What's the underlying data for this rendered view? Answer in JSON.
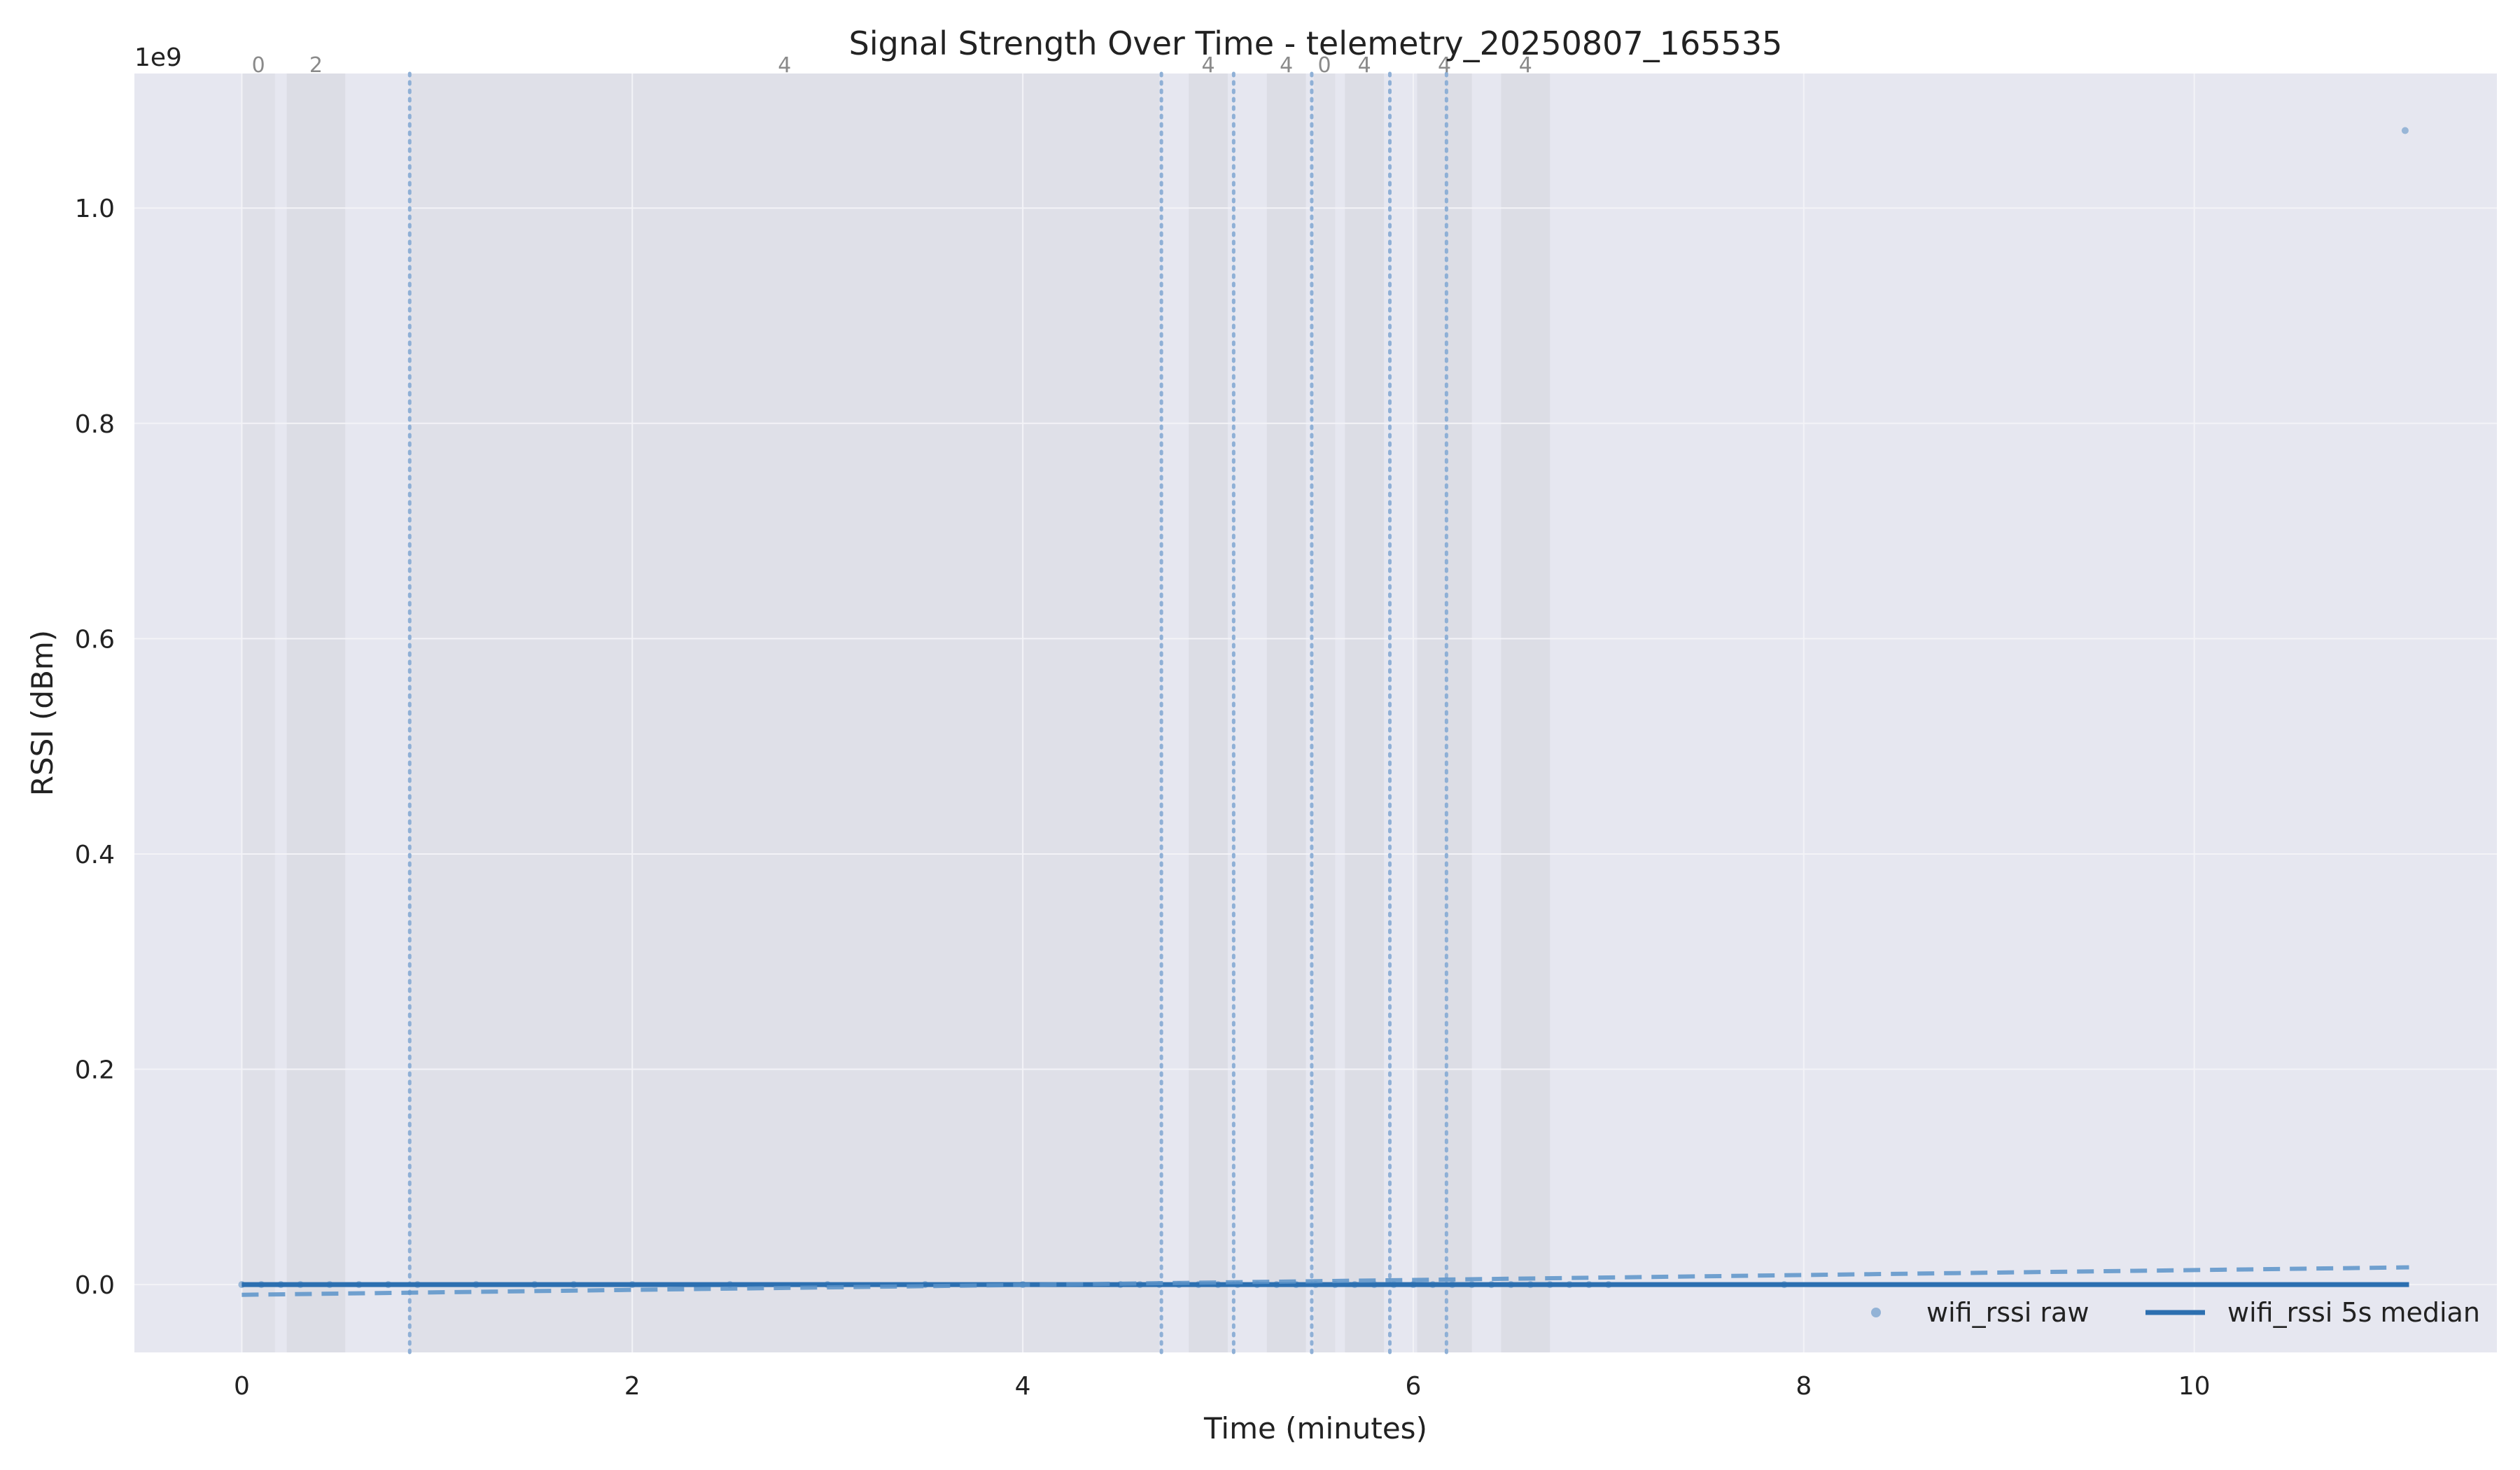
{
  "chart_data": {
    "type": "line",
    "title": "Signal Strength Over Time - telemetry_20250807_165535",
    "xlabel": "Time (minutes)",
    "ylabel": "RSSI (dBm)",
    "y_offset_label": "1e9",
    "xlim": [
      -0.55,
      11.55
    ],
    "ylim": [
      -0.063,
      1.125
    ],
    "x_ticks": [
      0,
      2,
      4,
      6,
      8,
      10
    ],
    "x_tick_labels": [
      "0",
      "2",
      "4",
      "6",
      "8",
      "10"
    ],
    "y_ticks": [
      0.0,
      0.2,
      0.4,
      0.6,
      0.8,
      1.0
    ],
    "y_tick_labels": [
      "0.0",
      "0.2",
      "0.4",
      "0.6",
      "0.8",
      "1.0"
    ],
    "grid": true,
    "background": "#e6e7f0",
    "legend": {
      "position": "lower-right",
      "entries": [
        {
          "label": "wifi_rssi raw",
          "marker": "dot",
          "color": "#7ea6cf"
        },
        {
          "label": "wifi_rssi 5s median",
          "marker": "line",
          "color": "#2c6fb0"
        }
      ]
    },
    "bands": [
      {
        "x0": 0.0,
        "x1": 0.17,
        "label": "0",
        "color": "#dcdde6"
      },
      {
        "x0": 0.23,
        "x1": 0.53,
        "label": "2",
        "color": "#d8d9e2"
      },
      {
        "x0": 0.86,
        "x1": 4.7,
        "label": "4",
        "color": "#dcdde6"
      },
      {
        "x0": 4.85,
        "x1": 5.05,
        "label": "4",
        "color": "#d8d9e2"
      },
      {
        "x0": 5.25,
        "x1": 5.45,
        "label": "4",
        "color": "#d8d9e2"
      },
      {
        "x0": 5.49,
        "x1": 5.6,
        "label": "0",
        "color": "#dcdde6"
      },
      {
        "x0": 5.65,
        "x1": 5.85,
        "label": "4",
        "color": "#d8d9e2"
      },
      {
        "x0": 6.02,
        "x1": 6.3,
        "label": "4",
        "color": "#d8d9e2"
      },
      {
        "x0": 6.45,
        "x1": 6.7,
        "label": "4",
        "color": "#d8d9e2"
      }
    ],
    "vlines": [
      0.86,
      4.71,
      5.08,
      5.48,
      5.88,
      6.17
    ],
    "series": [
      {
        "name": "wifi_rssi raw",
        "style": "scatter",
        "color": "#7ea6cf",
        "x": [
          0.0,
          0.1,
          0.2,
          0.3,
          0.45,
          0.6,
          0.75,
          0.9,
          1.2,
          1.5,
          1.7,
          2.0,
          2.5,
          3.0,
          3.5,
          4.0,
          4.5,
          4.6,
          4.7,
          4.8,
          4.9,
          5.0,
          5.1,
          5.2,
          5.3,
          5.4,
          5.5,
          5.6,
          5.7,
          5.8,
          5.9,
          6.0,
          6.1,
          6.2,
          6.3,
          6.4,
          6.5,
          6.6,
          6.7,
          6.8,
          6.9,
          7.0,
          7.9,
          11.08
        ],
        "y": [
          0.0,
          0.0,
          0.0,
          0.0,
          0.0,
          0.0,
          0.0,
          0.0,
          0.0,
          0.0,
          0.0,
          0.0,
          0.0,
          0.0,
          0.0,
          0.0,
          0.0,
          0.0,
          0.0,
          0.0,
          0.0,
          0.0,
          0.0,
          0.0,
          0.0,
          0.0,
          0.0,
          0.0,
          0.0,
          0.0,
          0.0,
          0.0,
          0.0,
          0.0,
          0.0,
          0.0,
          0.0,
          0.0,
          0.0,
          0.0,
          0.0,
          0.0,
          0.0,
          1.072
        ]
      },
      {
        "name": "wifi_rssi 5s median",
        "style": "line",
        "color": "#2c6fb0",
        "x": [
          0.0,
          11.1
        ],
        "y": [
          0.0,
          0.0
        ]
      },
      {
        "name": "",
        "style": "dashed",
        "color": "#5b93c9",
        "x": [
          0.0,
          11.1
        ],
        "y": [
          -0.0095,
          0.016
        ]
      }
    ]
  }
}
